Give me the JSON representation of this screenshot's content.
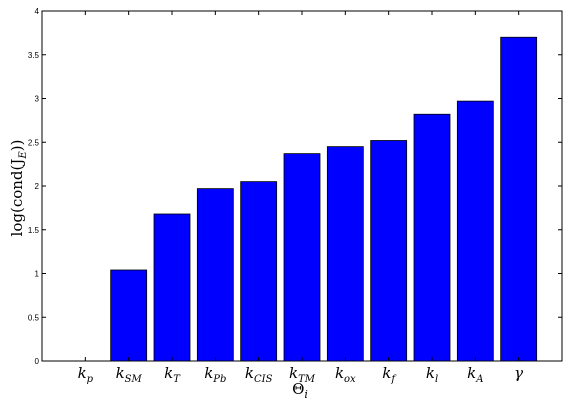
{
  "chart_data": {
    "type": "bar",
    "title": "",
    "xlabel": "Θ_i",
    "xlabel_main": "Θ",
    "xlabel_sub": "i",
    "ylabel": "log(cond(J_E))",
    "ylabel_pre": "log(cond(J",
    "ylabel_sub": "E",
    "ylabel_post": "))",
    "ylim": [
      0,
      4
    ],
    "yticks": [
      "0",
      "0.5",
      "1",
      "1.5",
      "2",
      "2.5",
      "3",
      "3.5",
      "4"
    ],
    "grid": false,
    "bar_color": "#0000ff",
    "categories": [
      {
        "base": "k",
        "sub": "p"
      },
      {
        "base": "k",
        "sub": "SM"
      },
      {
        "base": "k",
        "sub": "T"
      },
      {
        "base": "k",
        "sub": "Pb"
      },
      {
        "base": "k",
        "sub": "CIS"
      },
      {
        "base": "k",
        "sub": "TM"
      },
      {
        "base": "k",
        "sub": "ox"
      },
      {
        "base": "k",
        "sub": "f"
      },
      {
        "base": "k",
        "sub": "l"
      },
      {
        "base": "k",
        "sub": "A"
      },
      {
        "base": "γ",
        "sub": ""
      }
    ],
    "values": [
      0,
      1.04,
      1.68,
      1.97,
      2.05,
      2.37,
      2.45,
      2.52,
      2.82,
      2.97,
      3.7
    ]
  }
}
